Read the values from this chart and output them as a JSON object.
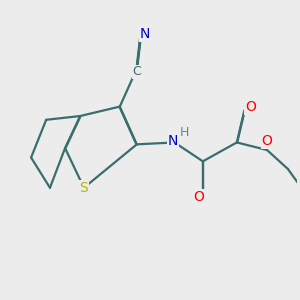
{
  "bg_color": "#ececec",
  "atom_colors": {
    "N": "#0000cd",
    "S": "#b8b800",
    "O": "#ff0000",
    "C": "#3a6e6e",
    "H": "#708090",
    "N_blue": "#0000cd"
  },
  "bond_color": "#3a6e6e",
  "bond_width": 1.6,
  "fig_size": [
    3.0,
    3.0
  ],
  "dpi": 100
}
